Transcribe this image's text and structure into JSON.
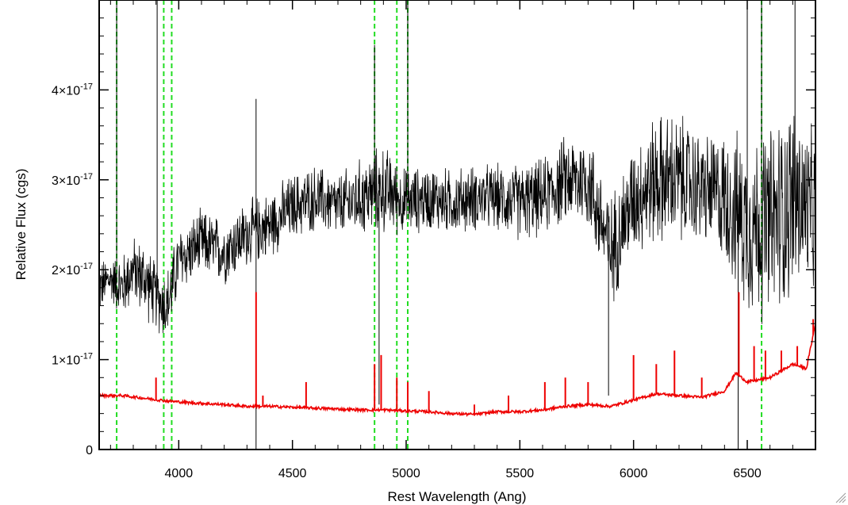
{
  "chart_data": {
    "type": "line",
    "title": "",
    "xlabel": "Rest Wavelength (Ang)",
    "ylabel": "Relative Flux (cgs)",
    "xlim": [
      3650,
      6800
    ],
    "ylim": [
      0,
      5e-17
    ],
    "x_ticks": [
      4000,
      4500,
      5000,
      5500,
      6000,
      6500
    ],
    "x_tick_labels": [
      "4000",
      "4500",
      "5000",
      "5500",
      "6000",
      "6500"
    ],
    "y_ticks": [
      0,
      1e-17,
      2e-17,
      3e-17,
      4e-17
    ],
    "y_tick_labels": [
      {
        "mant": "0",
        "exp": ""
      },
      {
        "mant": "1×10",
        "exp": "-17"
      },
      {
        "mant": "2×10",
        "exp": "-17"
      },
      {
        "mant": "3×10",
        "exp": "-17"
      },
      {
        "mant": "4×10",
        "exp": "-17"
      }
    ],
    "grid": false,
    "legend": "none",
    "line_markers_x": [
      3727,
      3934,
      3969,
      4861,
      4959,
      5007,
      6563
    ],
    "line_marker_color": "#22dd22",
    "series": [
      {
        "color": "#000000",
        "style": "noisy-spectrum",
        "x": [
          3650,
          3700,
          3750,
          3800,
          3850,
          3900,
          3950,
          4000,
          4100,
          4200,
          4300,
          4400,
          4500,
          4600,
          4700,
          4800,
          4900,
          5000,
          5100,
          5200,
          5300,
          5400,
          5500,
          5600,
          5700,
          5800,
          5900,
          6000,
          6100,
          6200,
          6300,
          6400,
          6500,
          6600,
          6700,
          6800
        ],
        "values": [
          1.8e-17,
          1.9e-17,
          1.8e-17,
          2e-17,
          1.9e-17,
          1.7e-17,
          1.6e-17,
          2.1e-17,
          2.3e-17,
          2.2e-17,
          2.4e-17,
          2.5e-17,
          2.7e-17,
          2.8e-17,
          2.7e-17,
          2.8e-17,
          2.9e-17,
          2.75e-17,
          2.8e-17,
          2.75e-17,
          2.8e-17,
          2.8e-17,
          2.75e-17,
          2.8e-17,
          3e-17,
          3e-17,
          2.2e-17,
          2.8e-17,
          3e-17,
          3e-17,
          2.9e-17,
          2.8e-17,
          2.5e-17,
          2.5e-17,
          2.8e-17,
          2.6e-17
        ],
        "noise": [
          2.5e-18,
          2e-18,
          3e-18,
          3e-18,
          3.5e-18,
          3e-18,
          3.5e-18,
          3e-18,
          3e-18,
          3e-18,
          3e-18,
          3e-18,
          3e-18,
          3e-18,
          3e-18,
          3.5e-18,
          4e-18,
          3e-18,
          3e-18,
          3e-18,
          3e-18,
          3e-18,
          3.5e-18,
          3.5e-18,
          4e-18,
          4.5e-18,
          5e-18,
          5e-18,
          6e-18,
          6e-18,
          5e-18,
          6e-18,
          8e-18,
          9e-18,
          9e-18,
          7e-18
        ],
        "spikes": [
          {
            "x": 3727,
            "value": 5e-17
          },
          {
            "x": 3905,
            "value": 5e-17
          },
          {
            "x": 4340,
            "value": 3.9e-17
          },
          {
            "x": 4340,
            "value": 0
          },
          {
            "x": 4861,
            "value": 4.5e-17
          },
          {
            "x": 4881,
            "value": 5e-18
          },
          {
            "x": 5007,
            "value": 5e-17
          },
          {
            "x": 5890,
            "value": 6e-18
          },
          {
            "x": 6460,
            "value": 0
          },
          {
            "x": 6500,
            "value": 5e-17
          },
          {
            "x": 6563,
            "value": 5e-17
          },
          {
            "x": 6710,
            "value": 5e-17
          }
        ]
      },
      {
        "color": "#ee0000",
        "style": "error-spectrum",
        "x": [
          3650,
          3750,
          3850,
          3950,
          4050,
          4200,
          4300,
          4400,
          4500,
          4600,
          4700,
          4800,
          4900,
          5000,
          5100,
          5200,
          5300,
          5400,
          5500,
          5600,
          5700,
          5800,
          5900,
          6000,
          6100,
          6200,
          6300,
          6400,
          6450,
          6500,
          6600,
          6700,
          6760,
          6800
        ],
        "values": [
          6e-18,
          6e-18,
          5.7e-18,
          5.4e-18,
          5.2e-18,
          5e-18,
          4.8e-18,
          4.8e-18,
          4.7e-18,
          4.6e-18,
          4.5e-18,
          4.4e-18,
          4.4e-18,
          4.3e-18,
          4.2e-18,
          4e-18,
          3.9e-18,
          4.2e-18,
          4.2e-18,
          4.4e-18,
          4.8e-18,
          5e-18,
          4.8e-18,
          5.5e-18,
          6.2e-18,
          6e-18,
          5.8e-18,
          6.5e-18,
          8.5e-18,
          7.5e-18,
          8e-18,
          9.5e-18,
          9e-18,
          1.4e-17
        ],
        "spikes": [
          {
            "x": 3900,
            "value": 8e-18
          },
          {
            "x": 4340,
            "value": 1.75e-17
          },
          {
            "x": 4370,
            "value": 6e-18
          },
          {
            "x": 4560,
            "value": 7.5e-18
          },
          {
            "x": 4861,
            "value": 9.5e-18
          },
          {
            "x": 4890,
            "value": 1.05e-17
          },
          {
            "x": 4959,
            "value": 8e-18
          },
          {
            "x": 5007,
            "value": 7.5e-18
          },
          {
            "x": 5100,
            "value": 6.5e-18
          },
          {
            "x": 5300,
            "value": 5e-18
          },
          {
            "x": 5450,
            "value": 6e-18
          },
          {
            "x": 5610,
            "value": 7.5e-18
          },
          {
            "x": 5700,
            "value": 8e-18
          },
          {
            "x": 5800,
            "value": 7.5e-18
          },
          {
            "x": 6000,
            "value": 1.05e-17
          },
          {
            "x": 6100,
            "value": 9.5e-18
          },
          {
            "x": 6180,
            "value": 1.1e-17
          },
          {
            "x": 6300,
            "value": 8e-18
          },
          {
            "x": 6463,
            "value": 1.75e-17
          },
          {
            "x": 6530,
            "value": 1.15e-17
          },
          {
            "x": 6580,
            "value": 1.1e-17
          },
          {
            "x": 6650,
            "value": 1.1e-17
          },
          {
            "x": 6720,
            "value": 1.15e-17
          },
          {
            "x": 6790,
            "value": 1.45e-17
          }
        ]
      }
    ]
  }
}
